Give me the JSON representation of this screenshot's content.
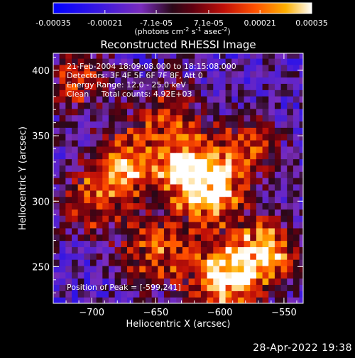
{
  "colorbar": {
    "ticks": [
      "-0.00035",
      "-0.00021",
      "-7.1e-05",
      "7.1e-05",
      "0.00021",
      "0.00035"
    ],
    "tick_values": [
      -0.00035,
      -0.00021,
      -7.1e-05,
      7.1e-05,
      0.00021,
      0.00035
    ],
    "unit_label_main": "(photons cm",
    "unit_exp1": "-2",
    "unit_mid": " s",
    "unit_exp2": "-1",
    "unit_mid2": " asec",
    "unit_exp3": "-2",
    "unit_end": ")",
    "range": [
      -0.00035,
      0.00035
    ]
  },
  "chart_data": {
    "type": "heatmap",
    "title": "Reconstructed RHESSI Image",
    "xlabel": "Heliocentric X (arcsec)",
    "ylabel": "Heliocentric Y (arcsec)",
    "xlim": [
      -730,
      -535
    ],
    "ylim": [
      222,
      413
    ],
    "x_ticks": [
      -700,
      -650,
      -600,
      -550
    ],
    "y_ticks": [
      250,
      300,
      350,
      400
    ],
    "x_tick_labels": [
      "−700",
      "−650",
      "−600",
      "−550"
    ],
    "y_tick_labels": [
      "250",
      "300",
      "350",
      "400"
    ],
    "annotations": [
      "21-Feb-2004 18:09:08.000 to 18:15:08.000",
      "Detectors: 3F 4F 5F 6F 7F 8F, Att 0",
      "Energy Range: 12.0 - 25.0 keV",
      "Clean     Total counts: 4.92E+03"
    ],
    "peak_label": "Position of Peak = [-599,241]",
    "peak": [
      -599,
      241
    ],
    "hotspots": [
      {
        "x": -623,
        "y": 324,
        "value": 0.00033
      },
      {
        "x": -599,
        "y": 241,
        "value": 0.00035
      },
      {
        "x": -566,
        "y": 260,
        "value": 0.00032
      },
      {
        "x": -672,
        "y": 330,
        "value": 0.00025
      },
      {
        "x": -605,
        "y": 306,
        "value": 0.00026
      },
      {
        "x": -650,
        "y": 262,
        "value": 0.00022
      },
      {
        "x": -700,
        "y": 300,
        "value": 0.00016
      },
      {
        "x": -712,
        "y": 393,
        "value": 0.00013
      },
      {
        "x": -578,
        "y": 342,
        "value": 0.00014
      },
      {
        "x": -640,
        "y": 368,
        "value": 0.00012
      }
    ],
    "colormap_stops": [
      "#0000ff",
      "#6020c0",
      "#7d2ab8",
      "#2a0810",
      "#b01010",
      "#ff4000",
      "#ffa000",
      "#ffffff"
    ]
  },
  "footer": {
    "timestamp": "28-Apr-2022 19:38"
  }
}
